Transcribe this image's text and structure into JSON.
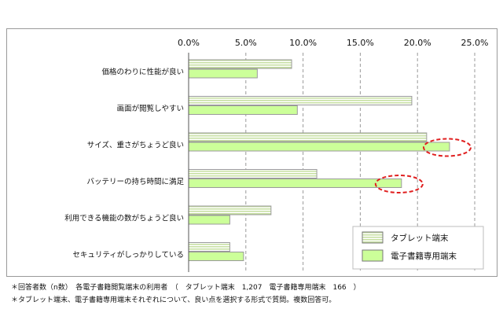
{
  "chart_data": {
    "type": "bar",
    "orientation": "horizontal",
    "categories": [
      "価格のわりに性能が良い",
      "画面が閲覧しやすい",
      "サイズ、重さがちょうど良い",
      "バッテリーの持ち時間に満足",
      "利用できる機能の数がちょうど良い",
      "セキュリティがしっかりしている"
    ],
    "series": [
      {
        "name": "タブレット端末",
        "values": [
          9.0,
          19.5,
          20.8,
          11.2,
          7.2,
          3.6
        ],
        "color": "#ffffff",
        "stripe_color": "#c6dfa0"
      },
      {
        "name": "電子書籍専用端末",
        "values": [
          6.0,
          9.5,
          22.8,
          18.6,
          3.6,
          4.8
        ],
        "color": "#ccff99"
      }
    ],
    "xlim": [
      0,
      25
    ],
    "xticks": [
      "0.0%",
      "5.0%",
      "10.0%",
      "15.0%",
      "20.0%",
      "25.0%"
    ],
    "grid": "vertical dashed",
    "legend_position": "bottom-right",
    "highlights": [
      {
        "category_index": 2,
        "series_index": 1,
        "color": "#e02020"
      },
      {
        "category_index": 3,
        "series_index": 1,
        "color": "#e02020"
      }
    ]
  },
  "footnotes": [
    "＊回答者数（n数）　各電子書籍閲覧端末の利用者　（　タブレット端末　1,207　電子書籍専用端末　166　）",
    "＊タブレット端末、電子書籍専用端末それぞれについて、良い点を選択する形式で質問。複数回答可。"
  ]
}
